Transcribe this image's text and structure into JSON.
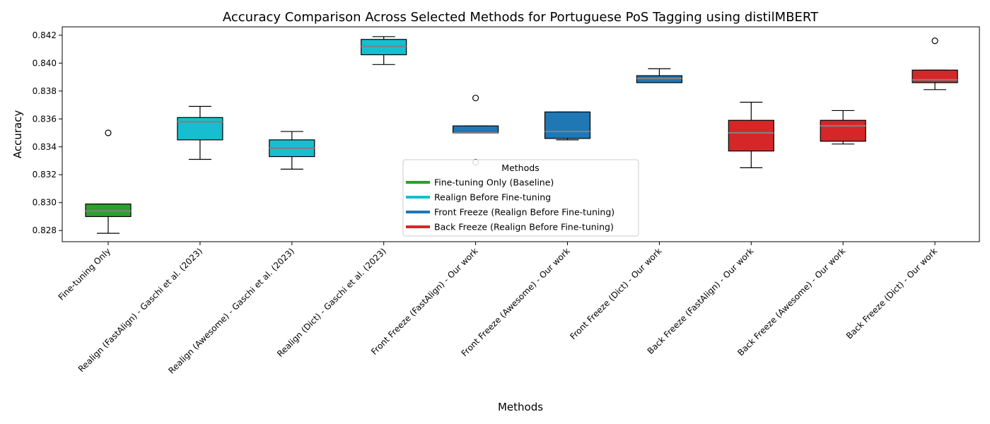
{
  "chart_data": {
    "type": "box",
    "title": "Accuracy Comparison Across Selected Methods for Portuguese PoS Tagging using distilMBERT",
    "xlabel": "Methods",
    "ylabel": "Accuracy",
    "ylim": [
      0.8272,
      0.8426
    ],
    "yticks": [
      "0.828",
      "0.830",
      "0.832",
      "0.834",
      "0.836",
      "0.838",
      "0.840",
      "0.842"
    ],
    "ytick_values": [
      0.828,
      0.83,
      0.832,
      0.834,
      0.836,
      0.838,
      0.84,
      0.842
    ],
    "grid": false,
    "legend": {
      "title": "Methods",
      "placement": "lower-center",
      "entries": [
        {
          "label": "Fine-tuning Only (Baseline)",
          "color": "#2ca02c"
        },
        {
          "label": "Realign Before Fine-tuning",
          "color": "#17becf"
        },
        {
          "label": "Front Freeze (Realign Before Fine-tuning)",
          "color": "#1f77b4"
        },
        {
          "label": "Back Freeze (Realign Before Fine-tuning)",
          "color": "#d62728"
        }
      ]
    },
    "categories": [
      "Fine-tuning Only",
      "Realign (FastAlign) - Gaschi et al. (2023)",
      "Realign (Awesome) - Gaschi et al. (2023)",
      "Realign (Dict) - Gaschi et al. (2023)",
      "Front Freeze (FastAlign) - Our work",
      "Front Freeze (Awesome) - Our work",
      "Front Freeze (Dict) - Our work",
      "Back Freeze (FastAlign) - Our work",
      "Back Freeze (Awesome) - Our work",
      "Back Freeze (Dict) - Our work"
    ],
    "boxes": [
      {
        "whislo": 0.8278,
        "q1": 0.829,
        "med": 0.8294,
        "q3": 0.8299,
        "whishi": 0.8299,
        "fliers": [
          0.835
        ],
        "group": 0
      },
      {
        "whislo": 0.8331,
        "q1": 0.8345,
        "med": 0.8358,
        "q3": 0.8361,
        "whishi": 0.8369,
        "fliers": [],
        "group": 1
      },
      {
        "whislo": 0.8324,
        "q1": 0.8333,
        "med": 0.8339,
        "q3": 0.8345,
        "whishi": 0.8351,
        "fliers": [],
        "group": 1
      },
      {
        "whislo": 0.8399,
        "q1": 0.8406,
        "med": 0.8412,
        "q3": 0.8417,
        "whishi": 0.8419,
        "fliers": [],
        "group": 1
      },
      {
        "whislo": 0.835,
        "q1": 0.835,
        "med": 0.835,
        "q3": 0.8355,
        "whishi": 0.8355,
        "fliers": [
          0.8375,
          0.8329
        ],
        "group": 2
      },
      {
        "whislo": 0.8345,
        "q1": 0.8346,
        "med": 0.8351,
        "q3": 0.8365,
        "whishi": 0.8365,
        "fliers": [],
        "group": 2
      },
      {
        "whislo": 0.8386,
        "q1": 0.8386,
        "med": 0.8389,
        "q3": 0.8391,
        "whishi": 0.8396,
        "fliers": [],
        "group": 2
      },
      {
        "whislo": 0.8325,
        "q1": 0.8337,
        "med": 0.835,
        "q3": 0.8359,
        "whishi": 0.8372,
        "fliers": [],
        "group": 3
      },
      {
        "whislo": 0.8342,
        "q1": 0.8344,
        "med": 0.8355,
        "q3": 0.8359,
        "whishi": 0.8366,
        "fliers": [],
        "group": 3
      },
      {
        "whislo": 0.8381,
        "q1": 0.8386,
        "med": 0.8388,
        "q3": 0.8395,
        "whishi": 0.8395,
        "fliers": [
          0.8416
        ],
        "group": 3
      }
    ],
    "median_color": "#808080"
  }
}
